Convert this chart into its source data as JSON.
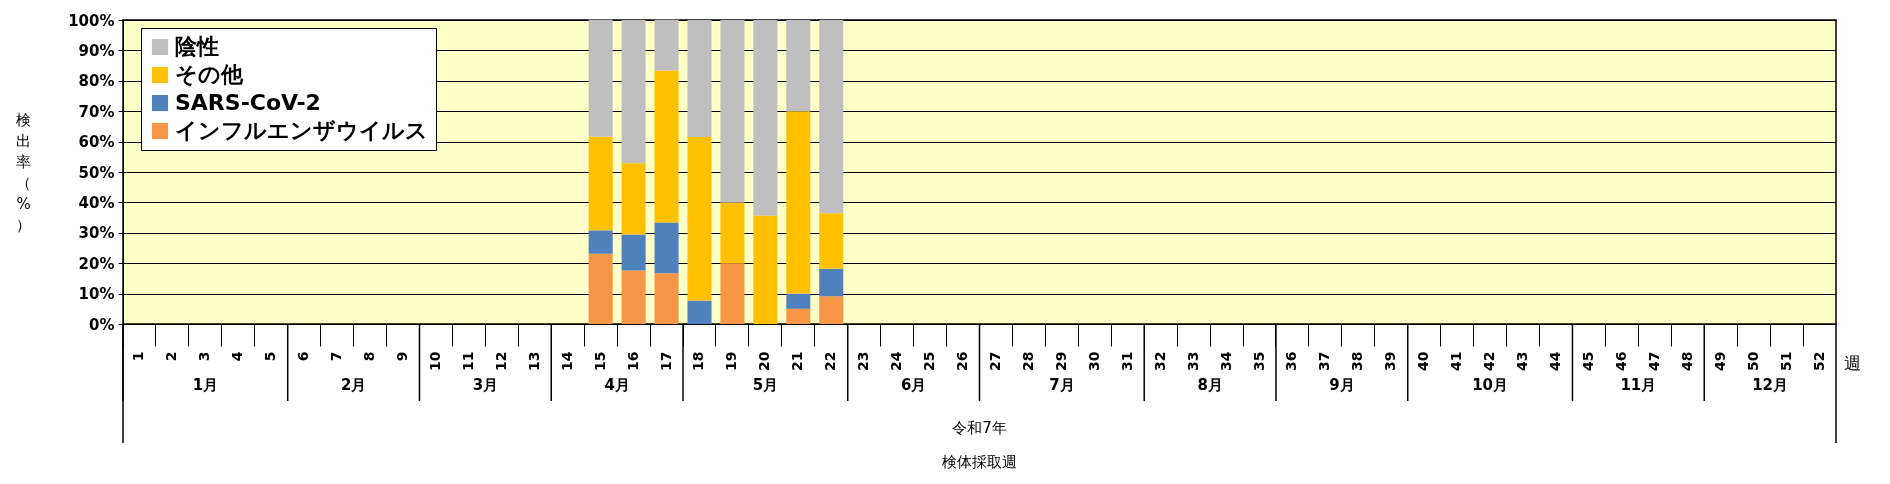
{
  "chart_data": {
    "type": "bar",
    "stacked": true,
    "ylabel": "検出率（%）",
    "categories": [
      "1",
      "2",
      "3",
      "4",
      "5",
      "6",
      "7",
      "8",
      "9",
      "10",
      "11",
      "12",
      "13",
      "14",
      "15",
      "16",
      "17",
      "18",
      "19",
      "20",
      "21",
      "22",
      "23",
      "24",
      "25",
      "26",
      "27",
      "28",
      "29",
      "30",
      "31",
      "32",
      "33",
      "34",
      "35",
      "36",
      "37",
      "38",
      "39",
      "40",
      "41",
      "42",
      "43",
      "44",
      "45",
      "46",
      "47",
      "48",
      "49",
      "50",
      "51",
      "52"
    ],
    "series": [
      {
        "name": "インフルエンザウイルス",
        "color": "#f79646",
        "values": [
          null,
          null,
          null,
          null,
          null,
          null,
          null,
          null,
          null,
          null,
          null,
          null,
          null,
          null,
          23.1,
          17.6,
          16.7,
          0,
          20,
          0,
          5,
          9.1,
          null,
          null,
          null,
          null,
          null,
          null,
          null,
          null,
          null,
          null,
          null,
          null,
          null,
          null,
          null,
          null,
          null,
          null,
          null,
          null,
          null,
          null,
          null,
          null,
          null,
          null,
          null,
          null,
          null,
          null
        ]
      },
      {
        "name": "SARS-CoV-2",
        "color": "#4f81bd",
        "values": [
          null,
          null,
          null,
          null,
          null,
          null,
          null,
          null,
          null,
          null,
          null,
          null,
          null,
          null,
          7.7,
          11.8,
          16.7,
          7.7,
          0,
          0,
          5,
          9.1,
          null,
          null,
          null,
          null,
          null,
          null,
          null,
          null,
          null,
          null,
          null,
          null,
          null,
          null,
          null,
          null,
          null,
          null,
          null,
          null,
          null,
          null,
          null,
          null,
          null,
          null,
          null,
          null,
          null,
          null
        ]
      },
      {
        "name": "その他",
        "color": "#ffc000",
        "values": [
          null,
          null,
          null,
          null,
          null,
          null,
          null,
          null,
          null,
          null,
          null,
          null,
          null,
          null,
          30.8,
          23.5,
          50,
          53.8,
          20,
          35.7,
          60,
          18.2,
          null,
          null,
          null,
          null,
          null,
          null,
          null,
          null,
          null,
          null,
          null,
          null,
          null,
          null,
          null,
          null,
          null,
          null,
          null,
          null,
          null,
          null,
          null,
          null,
          null,
          null,
          null,
          null,
          null,
          null
        ]
      },
      {
        "name": "陰性",
        "color": "#bfbfbf",
        "values": [
          null,
          null,
          null,
          null,
          null,
          null,
          null,
          null,
          null,
          null,
          null,
          null,
          null,
          null,
          38.5,
          47.1,
          16.7,
          38.5,
          60,
          64.3,
          30,
          63.6,
          null,
          null,
          null,
          null,
          null,
          null,
          null,
          null,
          null,
          null,
          null,
          null,
          null,
          null,
          null,
          null,
          null,
          null,
          null,
          null,
          null,
          null,
          null,
          null,
          null,
          null,
          null,
          null,
          null,
          null
        ]
      }
    ],
    "ylim": [
      0,
      100
    ],
    "yticks": [
      {
        "value": 0,
        "label": "0%"
      },
      {
        "value": 10,
        "label": "10%"
      },
      {
        "value": 20,
        "label": "20%"
      },
      {
        "value": 30,
        "label": "30%"
      },
      {
        "value": 40,
        "label": "40%"
      },
      {
        "value": 50,
        "label": "50%"
      },
      {
        "value": 60,
        "label": "60%"
      },
      {
        "value": 70,
        "label": "70%"
      },
      {
        "value": 80,
        "label": "80%"
      },
      {
        "value": 90,
        "label": "90%"
      },
      {
        "value": 100,
        "label": "100%"
      }
    ],
    "grid": "y",
    "legend": "top left",
    "annotations": [
      "1月",
      "2月",
      "3月",
      "4月",
      "5月",
      "6月",
      "7月",
      "8月",
      "9月",
      "10月",
      "11月",
      "12月",
      "令和7年",
      "週",
      "検体採取週"
    ]
  }
}
